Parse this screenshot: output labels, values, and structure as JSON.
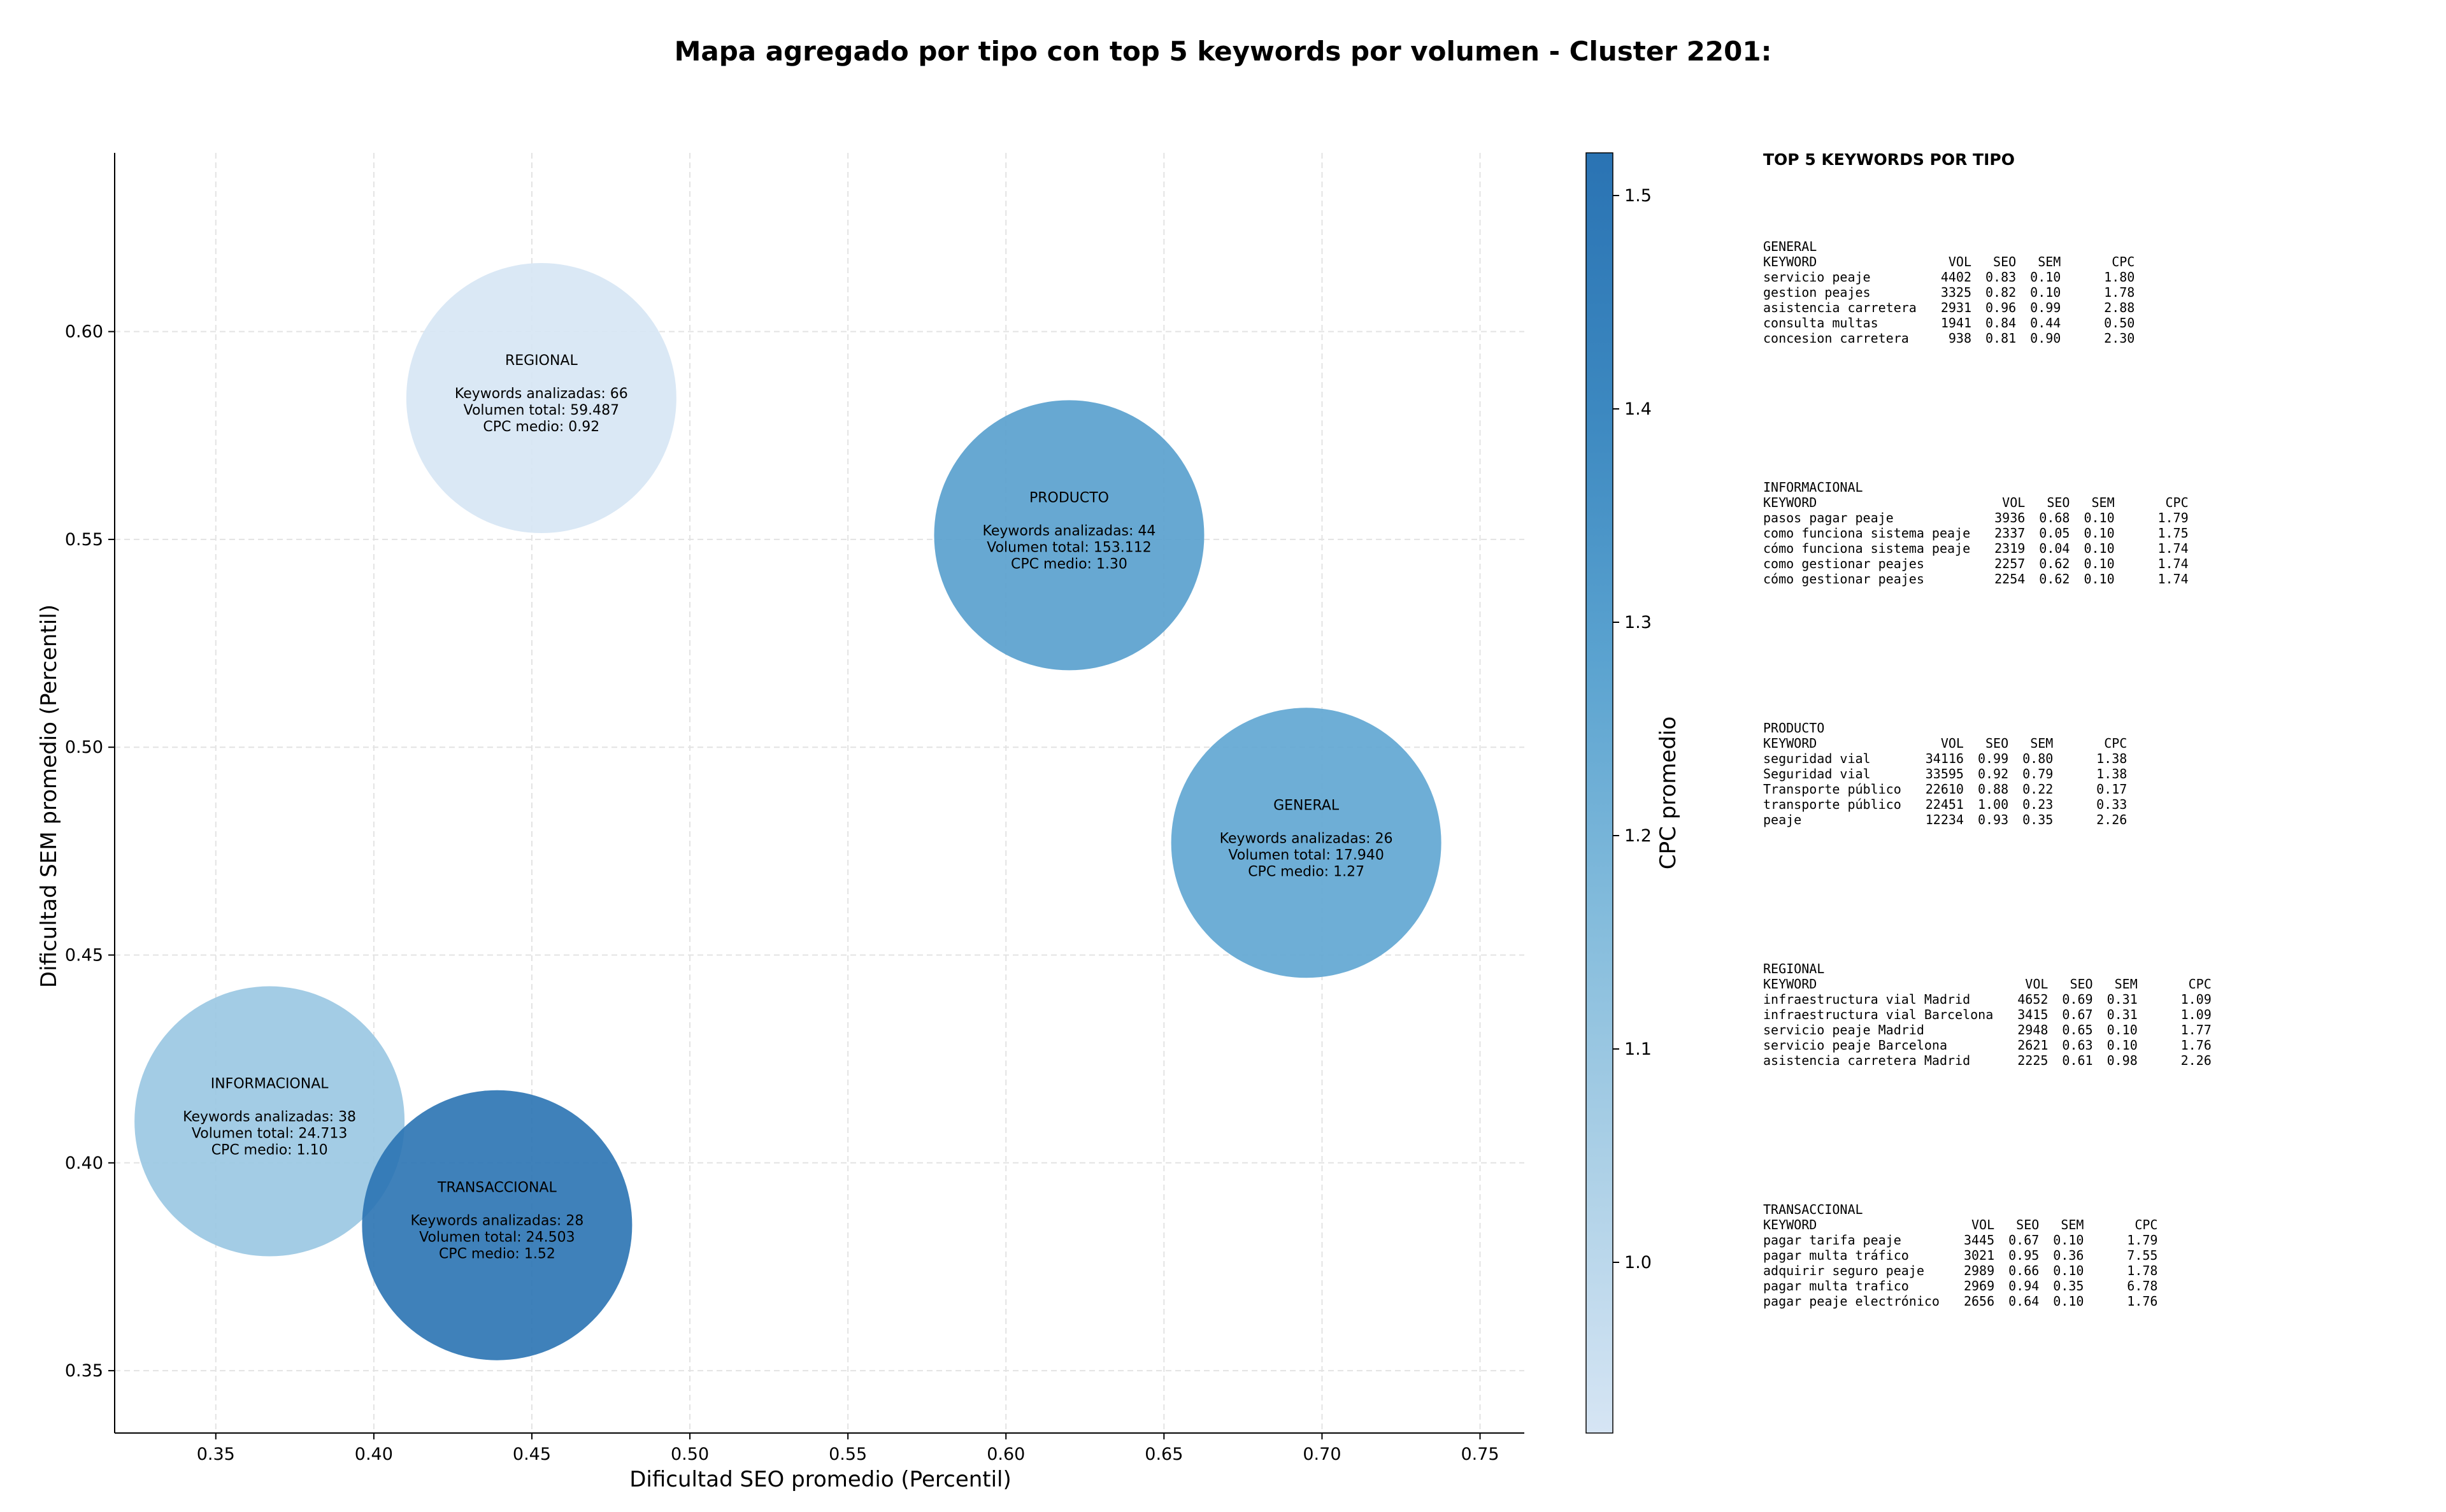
{
  "title": "Mapa agregado por tipo con top 5 keywords por volumen - Cluster 2201:",
  "chart_data": {
    "type": "scatter",
    "title": "Mapa agregado por tipo con top 5 keywords por volumen - Cluster 2201:",
    "xlabel": "Dificultad SEO promedio (Percentil)",
    "ylabel": "Dificultad SEM promedio (Percentil)",
    "xlim": [
      0.318,
      0.764
    ],
    "ylim": [
      0.335,
      0.643
    ],
    "xticks": [
      0.35,
      0.4,
      0.45,
      0.5,
      0.55,
      0.6,
      0.65,
      0.7,
      0.75
    ],
    "xtick_labels": [
      "0.35",
      "0.40",
      "0.45",
      "0.50",
      "0.55",
      "0.60",
      "0.65",
      "0.70",
      "0.75"
    ],
    "yticks": [
      0.35,
      0.4,
      0.45,
      0.5,
      0.55,
      0.6
    ],
    "ytick_labels": [
      "0.35",
      "0.40",
      "0.45",
      "0.50",
      "0.55",
      "0.60"
    ],
    "grid": true,
    "colorbar": {
      "label": "CPC promedio",
      "range": [
        0.92,
        1.52
      ],
      "ticks": [
        1.0,
        1.1,
        1.2,
        1.3,
        1.4,
        1.5
      ],
      "tick_labels": [
        "1.0",
        "1.1",
        "1.2",
        "1.3",
        "1.4",
        "1.5"
      ],
      "colors": [
        "#d6e5f4",
        "#aed1e7",
        "#84bcdc",
        "#5ba3d0",
        "#3c88c0",
        "#2a73b3"
      ]
    },
    "points": [
      {
        "name": "REGIONAL",
        "x": 0.453,
        "y": 0.584,
        "keywords_line": "Keywords analizadas: 66",
        "volume_line": "Volumen total: 59.487",
        "cpc_line": "CPC medio: 0.92",
        "keywords": 66,
        "volume": 59487,
        "cpc": 0.92
      },
      {
        "name": "PRODUCTO",
        "x": 0.62,
        "y": 0.551,
        "keywords_line": "Keywords analizadas: 44",
        "volume_line": "Volumen total: 153.112",
        "cpc_line": "CPC medio: 1.30",
        "keywords": 44,
        "volume": 153112,
        "cpc": 1.3
      },
      {
        "name": "GENERAL",
        "x": 0.695,
        "y": 0.477,
        "keywords_line": "Keywords analizadas: 26",
        "volume_line": "Volumen total: 17.940",
        "cpc_line": "CPC medio: 1.27",
        "keywords": 26,
        "volume": 17940,
        "cpc": 1.27
      },
      {
        "name": "INFORMACIONAL",
        "x": 0.367,
        "y": 0.41,
        "keywords_line": "Keywords analizadas: 38",
        "volume_line": "Volumen total: 24.713",
        "cpc_line": "CPC medio: 1.10",
        "keywords": 38,
        "volume": 24713,
        "cpc": 1.1
      },
      {
        "name": "TRANSACCIONAL",
        "x": 0.439,
        "y": 0.385,
        "keywords_line": "Keywords analizadas: 28",
        "volume_line": "Volumen total: 24.503",
        "cpc_line": "CPC medio: 1.52",
        "keywords": 28,
        "volume": 24503,
        "cpc": 1.52
      }
    ]
  },
  "tables": {
    "heading": "TOP 5 KEYWORDS POR TIPO",
    "columns": [
      "KEYWORD",
      "VOL",
      "SEO",
      "SEM",
      "CPC"
    ],
    "groups": [
      {
        "type": "GENERAL",
        "rows": [
          [
            "servicio peaje",
            "4402",
            "0.83",
            "0.10",
            "1.80"
          ],
          [
            "gestion peajes",
            "3325",
            "0.82",
            "0.10",
            "1.78"
          ],
          [
            "asistencia carretera",
            "2931",
            "0.96",
            "0.99",
            "2.88"
          ],
          [
            "consulta multas",
            "1941",
            "0.84",
            "0.44",
            "0.50"
          ],
          [
            "concesion carretera",
            "938",
            "0.81",
            "0.90",
            "2.30"
          ]
        ]
      },
      {
        "type": "INFORMACIONAL",
        "rows": [
          [
            "pasos pagar peaje",
            "3936",
            "0.68",
            "0.10",
            "1.79"
          ],
          [
            "como funciona sistema peaje",
            "2337",
            "0.05",
            "0.10",
            "1.75"
          ],
          [
            "cómo funciona sistema peaje",
            "2319",
            "0.04",
            "0.10",
            "1.74"
          ],
          [
            "como gestionar peajes",
            "2257",
            "0.62",
            "0.10",
            "1.74"
          ],
          [
            "cómo gestionar peajes",
            "2254",
            "0.62",
            "0.10",
            "1.74"
          ]
        ]
      },
      {
        "type": "PRODUCTO",
        "rows": [
          [
            "seguridad vial",
            "34116",
            "0.99",
            "0.80",
            "1.38"
          ],
          [
            "Seguridad vial",
            "33595",
            "0.92",
            "0.79",
            "1.38"
          ],
          [
            "Transporte público",
            "22610",
            "0.88",
            "0.22",
            "0.17"
          ],
          [
            "transporte público",
            "22451",
            "1.00",
            "0.23",
            "0.33"
          ],
          [
            "peaje",
            "12234",
            "0.93",
            "0.35",
            "2.26"
          ]
        ]
      },
      {
        "type": "REGIONAL",
        "rows": [
          [
            "infraestructura vial Madrid",
            "4652",
            "0.69",
            "0.31",
            "1.09"
          ],
          [
            "infraestructura vial Barcelona",
            "3415",
            "0.67",
            "0.31",
            "1.09"
          ],
          [
            "servicio peaje Madrid",
            "2948",
            "0.65",
            "0.10",
            "1.77"
          ],
          [
            "servicio peaje Barcelona",
            "2621",
            "0.63",
            "0.10",
            "1.76"
          ],
          [
            "asistencia carretera Madrid",
            "2225",
            "0.61",
            "0.98",
            "2.26"
          ]
        ]
      },
      {
        "type": "TRANSACCIONAL",
        "rows": [
          [
            "pagar tarifa peaje",
            "3445",
            "0.67",
            "0.10",
            "1.79"
          ],
          [
            "pagar multa tráfico",
            "3021",
            "0.95",
            "0.36",
            "7.55"
          ],
          [
            "adquirir seguro peaje",
            "2989",
            "0.66",
            "0.10",
            "1.78"
          ],
          [
            "pagar multa trafico",
            "2969",
            "0.94",
            "0.35",
            "6.78"
          ],
          [
            "pagar peaje electrónico",
            "2656",
            "0.64",
            "0.10",
            "1.76"
          ]
        ]
      }
    ]
  }
}
